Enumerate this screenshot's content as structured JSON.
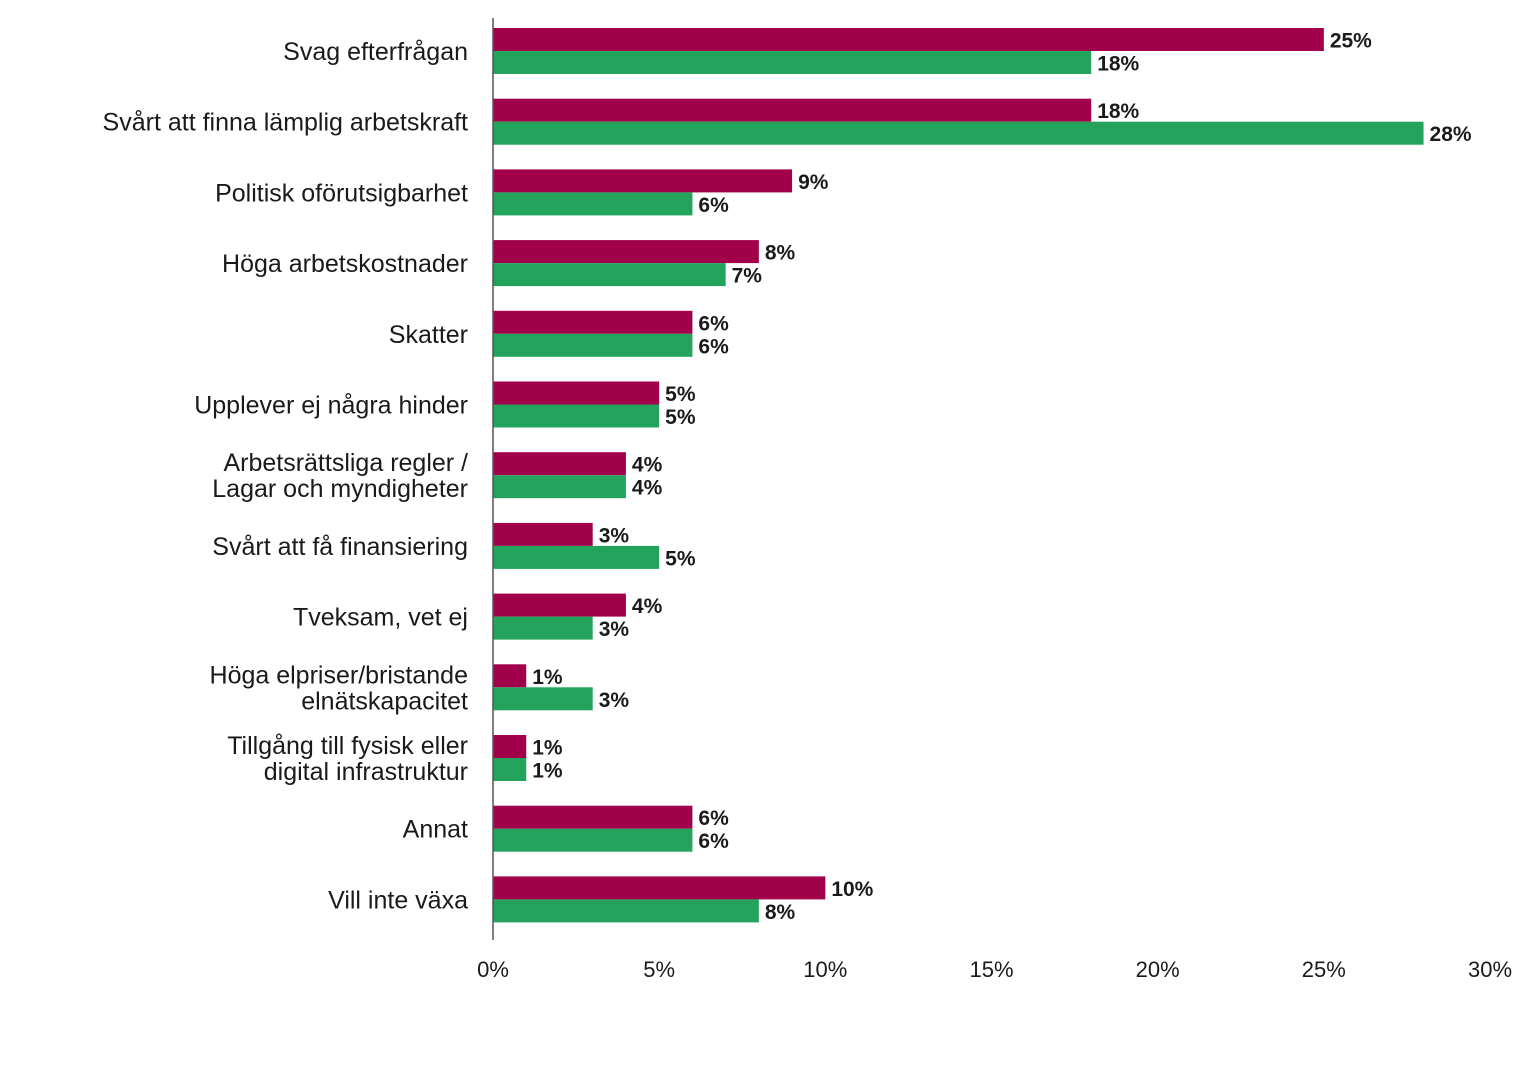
{
  "chart_data": {
    "type": "bar",
    "orientation": "horizontal",
    "categories": [
      [
        "Svag efterfrågan"
      ],
      [
        "Svårt att finna lämplig arbetskraft"
      ],
      [
        "Politisk oförutsigbarhet"
      ],
      [
        "Höga arbetskostnader"
      ],
      [
        "Skatter"
      ],
      [
        "Upplever ej några hinder"
      ],
      [
        "Arbetsrättsliga regler /",
        "Lagar och myndigheter"
      ],
      [
        "Svårt att få finansiering"
      ],
      [
        "Tveksam, vet ej"
      ],
      [
        "Höga elpriser/bristande",
        "elnätskapacitet"
      ],
      [
        "Tillgång till fysisk eller",
        "digital infrastruktur"
      ],
      [
        "Annat"
      ],
      [
        "Vill inte växa"
      ]
    ],
    "series": [
      {
        "color": "#a1004a",
        "values": [
          25,
          18,
          9,
          8,
          6,
          5,
          4,
          3,
          4,
          1,
          1,
          6,
          10
        ],
        "labels": [
          "25%",
          "18%",
          "9%",
          "8%",
          "6%",
          "5%",
          "4%",
          "3%",
          "4%",
          "1%",
          "1%",
          "6%",
          "10%"
        ]
      },
      {
        "color": "#23a35c",
        "values": [
          18,
          28,
          6,
          7,
          6,
          5,
          4,
          5,
          3,
          3,
          1,
          6,
          8
        ],
        "labels": [
          "18%",
          "28%",
          "6%",
          "7%",
          "6%",
          "5%",
          "4%",
          "5%",
          "3%",
          "3%",
          "1%",
          "6%",
          "8%"
        ]
      }
    ],
    "xlim": [
      0,
      30
    ],
    "xticks": [
      0,
      5,
      10,
      15,
      20,
      25,
      30
    ],
    "xtick_labels": [
      "0%",
      "5%",
      "10%",
      "15%",
      "20%",
      "25%",
      "30%"
    ],
    "grid": false,
    "legend": "none"
  }
}
